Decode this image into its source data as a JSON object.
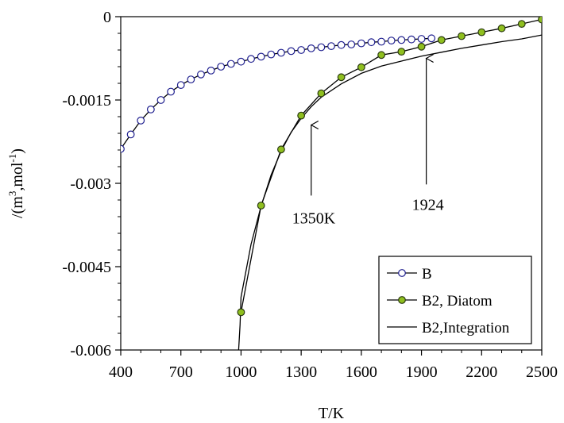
{
  "chart_data": {
    "type": "line",
    "title": "",
    "xlabel": "T/K",
    "ylabel": "/(m³,mol⁻¹)",
    "ylabel_parts": {
      "prefix": "/(m",
      "sup1": "3",
      "mid": ",mol",
      "sup2": "-1",
      "suffix": ")"
    },
    "xlim": [
      400,
      2500
    ],
    "ylim": [
      -0.006,
      0
    ],
    "xticks": [
      400,
      700,
      1000,
      1300,
      1600,
      1900,
      2200,
      2500
    ],
    "xtick_labels": [
      "400",
      "700",
      "1000",
      "1300",
      "1600",
      "1900",
      "2200",
      "2500"
    ],
    "yticks": [
      0,
      -0.0015,
      -0.003,
      -0.0045,
      -0.006
    ],
    "ytick_labels": [
      "0",
      "-0.0015",
      "-0.003",
      "-0.0045",
      "-0.006"
    ],
    "legend_position": "bottom-right",
    "series": [
      {
        "name": "B",
        "marker": "open-circle",
        "color": "#1f1f8f",
        "x": [
          400,
          450,
          500,
          550,
          600,
          650,
          700,
          750,
          800,
          850,
          900,
          950,
          1000,
          1050,
          1100,
          1150,
          1200,
          1250,
          1300,
          1350,
          1400,
          1450,
          1500,
          1550,
          1600,
          1650,
          1700,
          1750,
          1800,
          1850,
          1900,
          1950
        ],
        "y": [
          -0.00238,
          -0.00212,
          -0.00187,
          -0.00167,
          -0.0015,
          -0.00135,
          -0.00123,
          -0.00113,
          -0.00104,
          -0.00097,
          -0.0009,
          -0.00085,
          -0.00081,
          -0.00076,
          -0.00072,
          -0.00068,
          -0.00065,
          -0.00062,
          -0.0006,
          -0.00057,
          -0.00055,
          -0.00053,
          -0.00051,
          -0.0005,
          -0.00048,
          -0.00046,
          -0.00045,
          -0.00043,
          -0.00042,
          -0.00041,
          -0.0004,
          -0.00039
        ]
      },
      {
        "name": "B2, Diatom",
        "marker": "filled-circle",
        "color": "#8fbf1f",
        "x": [
          1000,
          1100,
          1200,
          1300,
          1400,
          1500,
          1600,
          1700,
          1800,
          1900,
          2000,
          2100,
          2200,
          2300,
          2400,
          2500
        ],
        "y": [
          -0.00532,
          -0.0034,
          -0.00239,
          -0.00178,
          -0.00138,
          -0.00109,
          -0.00091,
          -0.00069,
          -0.00063,
          -0.00054,
          -0.00042,
          -0.00035,
          -0.00028,
          -0.00021,
          -0.00013,
          -5e-05
        ]
      },
      {
        "name": "B2,Integration",
        "marker": "none",
        "color": "#000000",
        "x": [
          980,
          995,
          1000,
          1050,
          1100,
          1150,
          1200,
          1250,
          1300,
          1350,
          1400,
          1500,
          1600,
          1700,
          1800,
          1900,
          2000,
          2100,
          2200,
          2300,
          2400,
          2500
        ],
        "y": [
          -0.0065,
          -0.00555,
          -0.00505,
          -0.0041,
          -0.00341,
          -0.00285,
          -0.00242,
          -0.00208,
          -0.00183,
          -0.00162,
          -0.00145,
          -0.00121,
          -0.00102,
          -0.00089,
          -0.0008,
          -0.00071,
          -0.00064,
          -0.00057,
          -0.00051,
          -0.00045,
          -0.0004,
          -0.00033
        ]
      }
    ],
    "annotations": [
      {
        "label": "1350K",
        "x": 1350,
        "arrow_from": -0.00322,
        "arrow_to": -0.00195
      },
      {
        "label": "1924",
        "x": 1924,
        "arrow_from": -0.00302,
        "arrow_to": -0.00075
      }
    ]
  }
}
